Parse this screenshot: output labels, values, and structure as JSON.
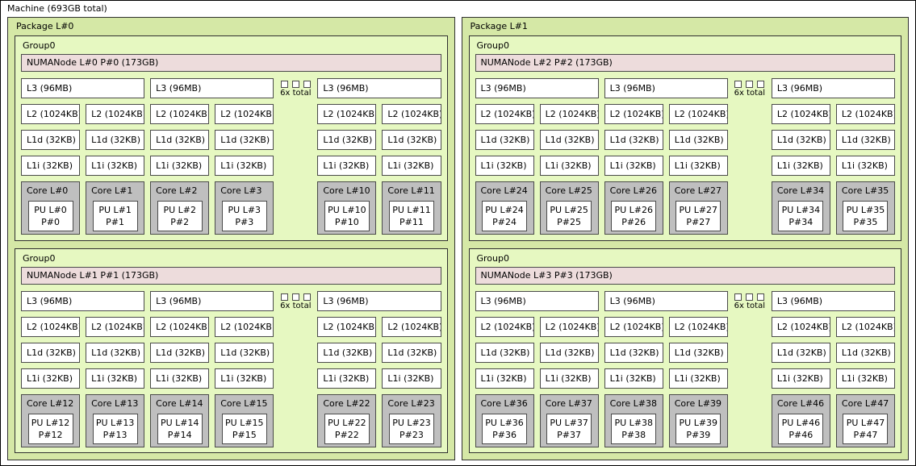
{
  "machine": {
    "label": "Machine (693GB total)"
  },
  "cache_labels": {
    "l3": "L3 (96MB)",
    "l2": "L2 (1024KB)",
    "l1d": "L1d (32KB)",
    "l1i": "L1i (32KB)",
    "ellipsis": "6x total"
  },
  "colors": {
    "machine_bg": "#ffffff",
    "package_bg": "#d5e8a6",
    "group_bg": "#e6f8c1",
    "numa_bg": "#eddcdc",
    "core_bg": "#bfbfbf",
    "box_bg": "#ffffff",
    "border": "#4a4a4a"
  },
  "packages": [
    {
      "label": "Package L#0",
      "groups": [
        {
          "label": "Group0",
          "numa": "NUMANode L#0 P#0 (173GB)",
          "cores": [
            {
              "core": "Core L#0",
              "pu": "PU L#0",
              "p": "P#0"
            },
            {
              "core": "Core L#1",
              "pu": "PU L#1",
              "p": "P#1"
            },
            {
              "core": "Core L#2",
              "pu": "PU L#2",
              "p": "P#2"
            },
            {
              "core": "Core L#3",
              "pu": "PU L#3",
              "p": "P#3"
            },
            {
              "core": "Core L#10",
              "pu": "PU L#10",
              "p": "P#10"
            },
            {
              "core": "Core L#11",
              "pu": "PU L#11",
              "p": "P#11"
            }
          ]
        },
        {
          "label": "Group0",
          "numa": "NUMANode L#1 P#1 (173GB)",
          "cores": [
            {
              "core": "Core L#12",
              "pu": "PU L#12",
              "p": "P#12"
            },
            {
              "core": "Core L#13",
              "pu": "PU L#13",
              "p": "P#13"
            },
            {
              "core": "Core L#14",
              "pu": "PU L#14",
              "p": "P#14"
            },
            {
              "core": "Core L#15",
              "pu": "PU L#15",
              "p": "P#15"
            },
            {
              "core": "Core L#22",
              "pu": "PU L#22",
              "p": "P#22"
            },
            {
              "core": "Core L#23",
              "pu": "PU L#23",
              "p": "P#23"
            }
          ]
        }
      ]
    },
    {
      "label": "Package L#1",
      "groups": [
        {
          "label": "Group0",
          "numa": "NUMANode L#2 P#2 (173GB)",
          "cores": [
            {
              "core": "Core L#24",
              "pu": "PU L#24",
              "p": "P#24"
            },
            {
              "core": "Core L#25",
              "pu": "PU L#25",
              "p": "P#25"
            },
            {
              "core": "Core L#26",
              "pu": "PU L#26",
              "p": "P#26"
            },
            {
              "core": "Core L#27",
              "pu": "PU L#27",
              "p": "P#27"
            },
            {
              "core": "Core L#34",
              "pu": "PU L#34",
              "p": "P#34"
            },
            {
              "core": "Core L#35",
              "pu": "PU L#35",
              "p": "P#35"
            }
          ]
        },
        {
          "label": "Group0",
          "numa": "NUMANode L#3 P#3 (173GB)",
          "cores": [
            {
              "core": "Core L#36",
              "pu": "PU L#36",
              "p": "P#36"
            },
            {
              "core": "Core L#37",
              "pu": "PU L#37",
              "p": "P#37"
            },
            {
              "core": "Core L#38",
              "pu": "PU L#38",
              "p": "P#38"
            },
            {
              "core": "Core L#39",
              "pu": "PU L#39",
              "p": "P#39"
            },
            {
              "core": "Core L#46",
              "pu": "PU L#46",
              "p": "P#46"
            },
            {
              "core": "Core L#47",
              "pu": "PU L#47",
              "p": "P#47"
            }
          ]
        }
      ]
    }
  ]
}
